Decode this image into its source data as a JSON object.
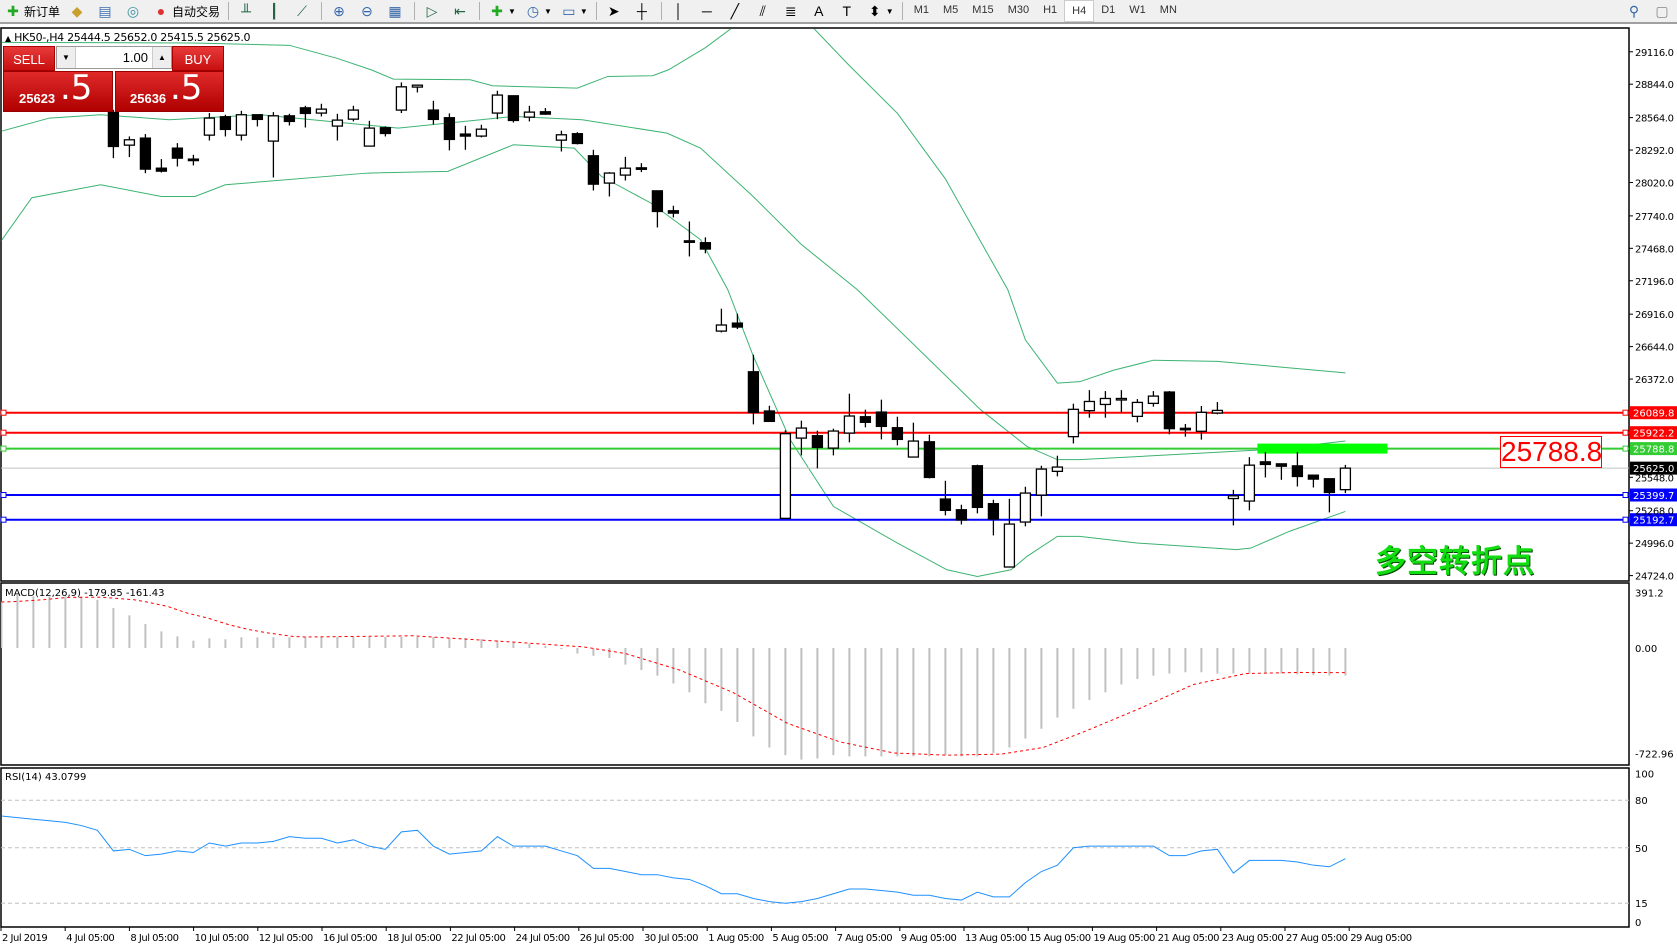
{
  "toolbar": {
    "new_order_label": "新订单",
    "autotrade_label": "自动交易",
    "timeframes": [
      "M1",
      "M5",
      "M15",
      "M30",
      "H1",
      "H4",
      "D1",
      "W1",
      "MN"
    ],
    "active_timeframe": "H4"
  },
  "chart": {
    "header": "HK50-,H4  25444.5 25652.0 25415.5 25625.0",
    "symbol": "HK50-",
    "timeframe": "H4",
    "ohlc_label": {
      "open": 25444.5,
      "high": 25652.0,
      "low": 25415.5,
      "close": 25625.0
    }
  },
  "trade_panel": {
    "sell_label": "SELL",
    "buy_label": "BUY",
    "lot": "1.00",
    "sell_price_main": "25623",
    "sell_price_frac": ".5",
    "buy_price_main": "25636",
    "buy_price_frac": ".5"
  },
  "annotations": {
    "level_box": "25788.8",
    "note": "多空转折点"
  },
  "colors": {
    "up_band": "#3cb371",
    "resistance": "#ff0000",
    "pivot": "#33cc33",
    "support": "#0000ff",
    "bid": "#c0c0c0",
    "macd_hist": "#c0c0c0",
    "signal": "#ff0000",
    "rsi": "#1e90ff",
    "highlight": "#00ff00"
  },
  "chart_data": {
    "type": "candlestick",
    "price_axis_ticks": [
      "29116.0",
      "28844.0",
      "28564.0",
      "28292.0",
      "28020.0",
      "27740.0",
      "27468.0",
      "27196.0",
      "26916.0",
      "26644.0",
      "26372.0",
      "25548.0",
      "25268.0",
      "24996.0",
      "24724.0"
    ],
    "time_axis_labels": [
      "2 Jul 2019",
      "4 Jul 05:00",
      "8 Jul 05:00",
      "10 Jul 05:00",
      "12 Jul 05:00",
      "16 Jul 05:00",
      "18 Jul 05:00",
      "22 Jul 05:00",
      "24 Jul 05:00",
      "26 Jul 05:00",
      "30 Jul 05:00",
      "1 Aug 05:00",
      "5 Aug 05:00",
      "7 Aug 05:00",
      "9 Aug 05:00",
      "13 Aug 05:00",
      "15 Aug 05:00",
      "19 Aug 05:00",
      "21 Aug 05:00",
      "23 Aug 05:00",
      "27 Aug 05:00",
      "29 Aug 05:00"
    ],
    "candles_ohlc": [
      [
        28607,
        28630,
        28224,
        28322
      ],
      [
        28333,
        28406,
        28233,
        28378
      ],
      [
        28392,
        28426,
        28098,
        28132
      ],
      [
        28140,
        28216,
        28104,
        28115
      ],
      [
        28308,
        28350,
        28154,
        28224
      ],
      [
        28216,
        28252,
        28163,
        28210
      ],
      [
        28417,
        28602,
        28372,
        28560
      ],
      [
        28571,
        28588,
        28406,
        28465
      ],
      [
        28417,
        28621,
        28372,
        28588
      ],
      [
        28588,
        28588,
        28490,
        28549
      ],
      [
        28367,
        28610,
        28062,
        28579
      ],
      [
        28579,
        28596,
        28498,
        28532
      ],
      [
        28646,
        28663,
        28481,
        28599
      ],
      [
        28602,
        28680,
        28574,
        28635
      ],
      [
        28493,
        28596,
        28372,
        28543
      ],
      [
        28551,
        28663,
        28532,
        28627
      ],
      [
        28325,
        28537,
        28325,
        28476
      ],
      [
        28479,
        28490,
        28406,
        28431
      ],
      [
        28627,
        28859,
        28602,
        28822
      ],
      [
        28820,
        28836,
        28775,
        28836
      ],
      [
        28627,
        28705,
        28507,
        28549
      ],
      [
        28563,
        28599,
        28289,
        28381
      ],
      [
        28426,
        28495,
        28294,
        28409
      ],
      [
        28409,
        28504,
        28398,
        28467
      ],
      [
        28602,
        28789,
        28551,
        28753
      ],
      [
        28747,
        28747,
        28523,
        28540
      ],
      [
        28568,
        28663,
        28532,
        28610
      ],
      [
        28613,
        28644,
        28588,
        28593
      ],
      [
        28375,
        28454,
        28280,
        28420
      ],
      [
        28429,
        28442,
        28339,
        28347
      ],
      [
        28244,
        28294,
        27953,
        28006
      ],
      [
        28015,
        28107,
        27903,
        28099
      ],
      [
        28082,
        28235,
        28037,
        28140
      ],
      [
        28143,
        28182,
        28107,
        28132
      ],
      [
        27950,
        27950,
        27643,
        27777
      ],
      [
        27783,
        27825,
        27727,
        27763
      ],
      [
        27531,
        27693,
        27400,
        27526
      ],
      [
        27515,
        27560,
        27426,
        27462
      ],
      [
        26774,
        26962,
        26763,
        26825
      ],
      [
        26841,
        26920,
        26791,
        26808
      ],
      [
        26433,
        26576,
        25992,
        26092
      ],
      [
        26104,
        26148,
        26017,
        26017
      ],
      [
        25204,
        25942,
        25204,
        25914
      ],
      [
        25877,
        26023,
        25732,
        25961
      ],
      [
        25897,
        25939,
        25623,
        25799
      ],
      [
        25793,
        25956,
        25732,
        25936
      ],
      [
        25919,
        26249,
        25841,
        26062
      ],
      [
        26056,
        26115,
        25967,
        26009
      ],
      [
        26095,
        26199,
        25866,
        25975
      ],
      [
        25964,
        26056,
        25816,
        25866
      ],
      [
        25718,
        26006,
        25718,
        25852
      ],
      [
        25846,
        25905,
        25539,
        25547
      ],
      [
        25366,
        25519,
        25229,
        25271
      ],
      [
        25276,
        25318,
        25153,
        25190
      ],
      [
        25645,
        25654,
        25246,
        25296
      ],
      [
        25327,
        25360,
        25061,
        25198
      ],
      [
        24796,
        25368,
        24796,
        25156
      ],
      [
        25173,
        25469,
        25137,
        25416
      ],
      [
        25399,
        25645,
        25221,
        25617
      ],
      [
        25598,
        25729,
        25556,
        25634
      ],
      [
        25889,
        26165,
        25832,
        26118
      ],
      [
        26107,
        26279,
        26048,
        26184
      ],
      [
        26159,
        26271,
        26048,
        26209
      ],
      [
        26204,
        26279,
        26093,
        26209
      ],
      [
        26059,
        26204,
        26009,
        26176
      ],
      [
        26168,
        26271,
        26140,
        26229
      ],
      [
        26263,
        26271,
        25909,
        25956
      ],
      [
        25959,
        25995,
        25889,
        25951
      ],
      [
        25934,
        26146,
        25864,
        26093
      ],
      [
        26087,
        26179,
        26076,
        26109
      ],
      [
        25370,
        25443,
        25145,
        25393
      ],
      [
        25349,
        25717,
        25271,
        25650
      ],
      [
        25678,
        25761,
        25547,
        25656
      ],
      [
        25661,
        25661,
        25527,
        25641
      ],
      [
        25644,
        25761,
        25471,
        25555
      ],
      [
        25566,
        25572,
        25463,
        25533
      ],
      [
        25536,
        25536,
        25254,
        25421
      ],
      [
        25444.5,
        25652,
        25415.5,
        25625
      ]
    ],
    "bollinger": {
      "upper": [
        [
          -6,
          29195
        ],
        [
          6,
          29190
        ],
        [
          12,
          29170
        ],
        [
          15,
          29060
        ],
        [
          17.1,
          28965
        ],
        [
          18.5,
          28887
        ],
        [
          23.3,
          28881
        ],
        [
          24.7,
          28831
        ],
        [
          30,
          28811
        ],
        [
          31.9,
          28909
        ],
        [
          34.7,
          28915
        ],
        [
          35.7,
          28965
        ],
        [
          38,
          29150
        ],
        [
          40,
          29350
        ],
        [
          44.5,
          29350
        ],
        [
          47,
          29000
        ],
        [
          50,
          28600
        ],
        [
          53,
          28050
        ],
        [
          56.9,
          27121
        ],
        [
          58,
          26700
        ],
        [
          60,
          26338
        ],
        [
          61.4,
          26350
        ],
        [
          63.5,
          26446
        ],
        [
          66,
          26530
        ],
        [
          70,
          26520
        ],
        [
          78,
          26424
        ]
      ],
      "middle": [
        [
          -6,
          28450
        ],
        [
          -3,
          28560
        ],
        [
          0.2,
          28588
        ],
        [
          4.5,
          28546
        ],
        [
          10.2,
          28588
        ],
        [
          18.8,
          28476
        ],
        [
          26,
          28574
        ],
        [
          30.3,
          28546
        ],
        [
          35.6,
          28434
        ],
        [
          37.7,
          28308
        ],
        [
          41,
          27900
        ],
        [
          44,
          27500
        ],
        [
          47.5,
          27121
        ],
        [
          55.2,
          26115
        ],
        [
          58.1,
          25807
        ],
        [
          60,
          25696
        ],
        [
          61.4,
          25696
        ],
        [
          73.5,
          25783
        ],
        [
          78,
          25853
        ]
      ],
      "lower": [
        [
          -6,
          27533
        ],
        [
          -4.1,
          27892
        ],
        [
          0.2,
          28001
        ],
        [
          4,
          27903
        ],
        [
          6.1,
          27903
        ],
        [
          8,
          28001
        ],
        [
          16.9,
          28099
        ],
        [
          21.9,
          28113
        ],
        [
          26,
          28336
        ],
        [
          29.8,
          28308
        ],
        [
          31.5,
          28071
        ],
        [
          34.6,
          27847
        ],
        [
          37.7,
          27540
        ],
        [
          39.4,
          27121
        ],
        [
          41,
          26562
        ],
        [
          43.3,
          25863
        ],
        [
          46,
          25304
        ],
        [
          50,
          24997
        ],
        [
          53.1,
          24773
        ],
        [
          55,
          24717
        ],
        [
          57.1,
          24773
        ],
        [
          58.1,
          24885
        ],
        [
          60,
          25053
        ],
        [
          61.4,
          25053
        ],
        [
          64.9,
          24998
        ],
        [
          71.2,
          24942
        ],
        [
          72.1,
          24955
        ],
        [
          74.5,
          25095
        ],
        [
          78,
          25262
        ]
      ]
    },
    "levels": [
      {
        "price": 26089.8,
        "label": "26089.8",
        "kind": "resistance"
      },
      {
        "price": 25922.2,
        "label": "25922.2",
        "kind": "resistance"
      },
      {
        "price": 25788.8,
        "label": "25788.8",
        "kind": "pivot"
      },
      {
        "price": 25625.0,
        "label": "25625.0",
        "kind": "bid"
      },
      {
        "price": 25399.7,
        "label": "25399.7",
        "kind": "support"
      },
      {
        "price": 25192.7,
        "label": "25192.7",
        "kind": "support"
      }
    ],
    "highlight_zone": {
      "price": 25788.8,
      "from_bar": 73,
      "to_bar": 81
    },
    "macd": {
      "label": "MACD(12,26,9) -179.85 -161.43",
      "axis_labels": [
        "391.2",
        "0.00",
        "-722.96"
      ],
      "first_bar": -6,
      "histogram": [
        305,
        349,
        338,
        338,
        338,
        338,
        316,
        262,
        214,
        157,
        109,
        76,
        48,
        63,
        57,
        70,
        70,
        70,
        70,
        75,
        75,
        72,
        72,
        72,
        72,
        72,
        72,
        72,
        65,
        65,
        58,
        51,
        36,
        29,
        14,
        -7,
        -36,
        -51,
        -65,
        -109,
        -145,
        -181,
        -232,
        -290,
        -362,
        -412,
        -485,
        -579,
        -652,
        -702,
        -731,
        -724,
        -702,
        -710,
        -710,
        -710,
        -710,
        -710,
        -710,
        -702,
        -710,
        -710,
        -688,
        -652,
        -594,
        -529,
        -456,
        -398,
        -340,
        -290,
        -239,
        -203,
        -181,
        -167,
        -159,
        -159,
        -167,
        -167,
        -167,
        -167,
        -167,
        -174,
        -178,
        -180,
        -179.85
      ],
      "signal": [
        [
          -6,
          301
        ],
        [
          -5,
          305
        ],
        [
          -3.4,
          316
        ],
        [
          -1.9,
          331
        ],
        [
          0.2,
          333
        ],
        [
          2.3,
          316
        ],
        [
          3.1,
          301
        ],
        [
          4.4,
          272
        ],
        [
          5.6,
          229
        ],
        [
          6.9,
          196
        ],
        [
          8.2,
          153
        ],
        [
          9.5,
          120
        ],
        [
          10.7,
          98
        ],
        [
          12.2,
          76
        ],
        [
          13,
          72
        ],
        [
          19.7,
          80
        ],
        [
          26.4,
          36
        ],
        [
          30.4,
          7
        ],
        [
          33,
          -36
        ],
        [
          36.4,
          -145
        ],
        [
          39.7,
          -290
        ],
        [
          43.1,
          -492
        ],
        [
          46.4,
          -615
        ],
        [
          49.8,
          -688
        ],
        [
          53.1,
          -702
        ],
        [
          56.5,
          -695
        ],
        [
          59.1,
          -652
        ],
        [
          61.8,
          -543
        ],
        [
          65.1,
          -398
        ],
        [
          68.5,
          -239
        ],
        [
          71.8,
          -167
        ],
        [
          75.2,
          -160
        ],
        [
          78,
          -161.43
        ]
      ]
    },
    "rsi": {
      "label": "RSI(14) 43.0799",
      "axis_labels": [
        "100",
        "80",
        "50",
        "15",
        "0"
      ],
      "levels": [
        80,
        50,
        15
      ],
      "first_bar": -6,
      "values": [
        70,
        69,
        68,
        67,
        66,
        64,
        61,
        48,
        49,
        45,
        46,
        48,
        47,
        53,
        51,
        53,
        53,
        54,
        57,
        56,
        56,
        53,
        55,
        51,
        49,
        60,
        61,
        51,
        46,
        47,
        48,
        57,
        51,
        51,
        51,
        48,
        45,
        37,
        37,
        35,
        33,
        33,
        31,
        30,
        26,
        21,
        21,
        18,
        16,
        15,
        16,
        18,
        21,
        24,
        24,
        23,
        22,
        20,
        20,
        18,
        17,
        22,
        19,
        19,
        28,
        35,
        39,
        50,
        51,
        51,
        51,
        51,
        51,
        45,
        45,
        48,
        49,
        34,
        42,
        42,
        42,
        41,
        39,
        38,
        43.08
      ]
    }
  }
}
